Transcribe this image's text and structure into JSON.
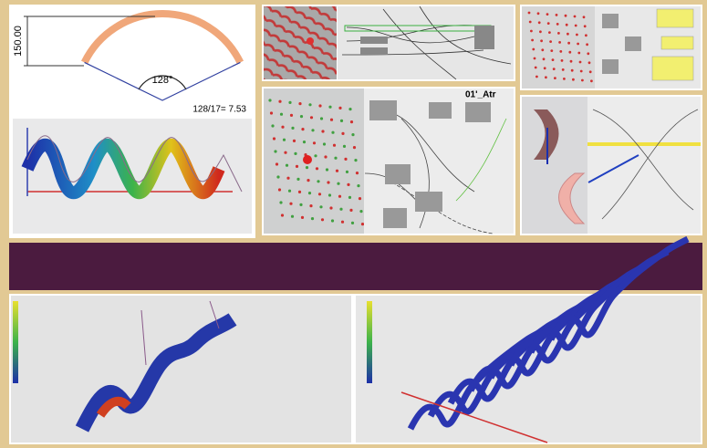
{
  "arc_diagram": {
    "height_label": "150.00",
    "angle_label": "128°",
    "formula": "128/17= 7.53"
  },
  "script_panel": {
    "label": "01'_Atr"
  }
}
